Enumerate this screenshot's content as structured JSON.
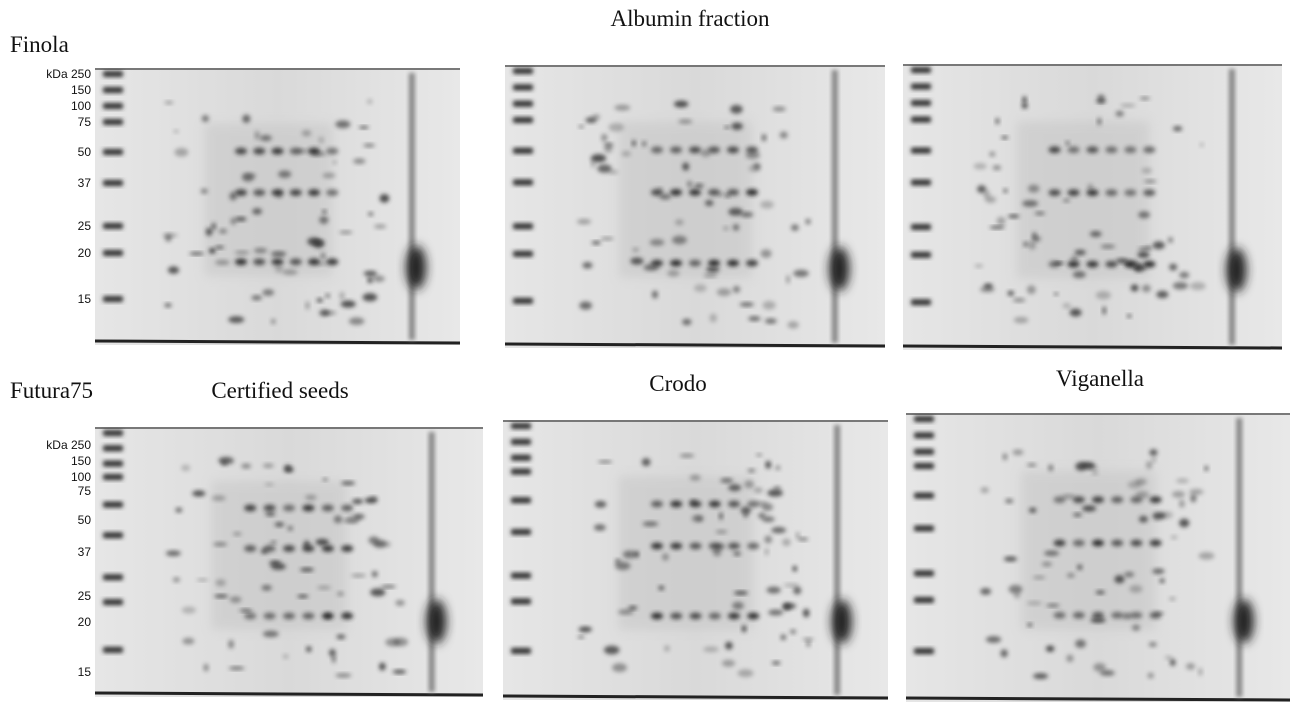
{
  "title": "Albumin fraction",
  "rows": [
    {
      "label": "Finola",
      "marker_labels": [
        "kDa 250",
        "150",
        "100",
        "75",
        "50",
        "37",
        "25",
        "20",
        "15"
      ]
    },
    {
      "label": "Futura75",
      "marker_labels": [
        "kDa 250",
        "150",
        "100",
        "75",
        "50",
        "37",
        "25",
        "20",
        "15"
      ]
    }
  ],
  "columns": [
    "Certified seeds",
    "Crodo",
    "Viganella"
  ]
}
